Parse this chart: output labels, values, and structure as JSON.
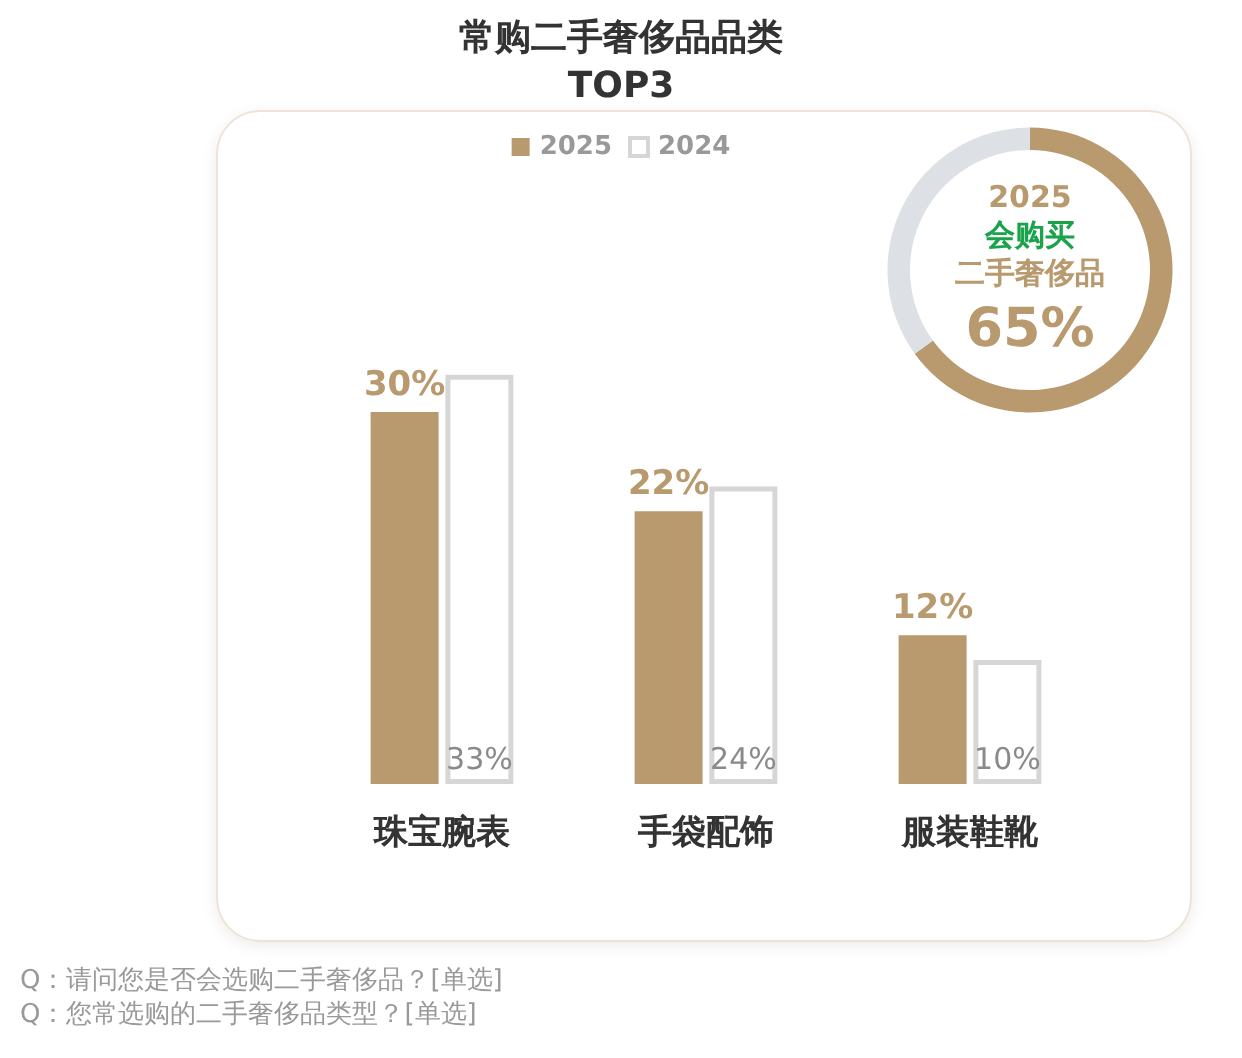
{
  "chart_data": [
    {
      "type": "bar",
      "title": "常购二手奢侈品品类\nTOP3",
      "categories": [
        "珠宝腕表",
        "手袋配饰",
        "服装鞋靴"
      ],
      "series": [
        {
          "name": "2025",
          "color": "#b89a6e",
          "values": [
            30,
            22,
            12
          ],
          "value_labels": [
            "30%",
            "22%",
            "12%"
          ]
        },
        {
          "name": "2024",
          "color": "#ffffff",
          "values": [
            33,
            24,
            10
          ],
          "value_labels": [
            "33%",
            "24%",
            "10%"
          ]
        }
      ],
      "legend": "top",
      "tick_labels": "x",
      "annotations": [
        "Q：请问您是否会选购二手奢侈品？[单选]",
        "Q：您常选购的二手奢侈品类型？[单选]"
      ]
    },
    {
      "type": "donut",
      "title": "2025",
      "subtitle": "会购买",
      "annotations": [
        "二手奢侈品"
      ],
      "categories": [
        null,
        null
      ],
      "values": [
        65,
        35
      ],
      "colors": [
        "#b89a6e",
        "#dde0e5"
      ],
      "value_labels": [
        "65%",
        null
      ]
    }
  ]
}
